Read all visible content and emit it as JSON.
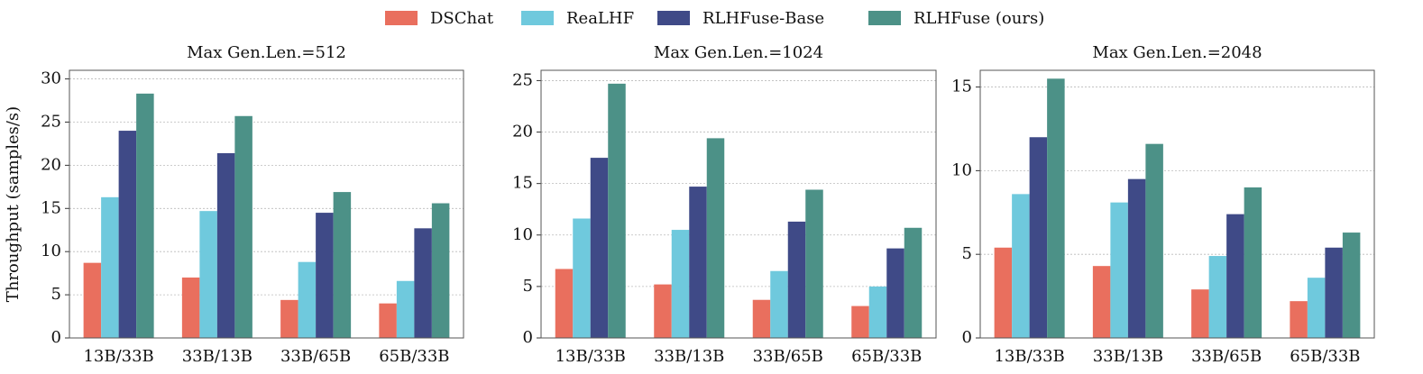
{
  "chart_data": [
    {
      "type": "bar",
      "title": "Max Gen.Len.=512",
      "ylabel": "Throughput (samples/s)",
      "categories": [
        "13B/33B",
        "33B/13B",
        "33B/65B",
        "65B/33B"
      ],
      "series": [
        {
          "name": "DSChat",
          "color": "#e96f5e",
          "values": [
            8.7,
            7.0,
            4.4,
            4.0
          ]
        },
        {
          "name": "ReaLHF",
          "color": "#6fc9dd",
          "values": [
            16.3,
            14.7,
            8.8,
            6.6
          ]
        },
        {
          "name": "RLHFuse-Base",
          "color": "#3f4a87",
          "values": [
            24.0,
            21.4,
            14.5,
            12.7
          ]
        },
        {
          "name": "RLHFuse (ours)",
          "color": "#4c9187",
          "values": [
            28.3,
            25.7,
            16.9,
            15.6
          ]
        }
      ],
      "ylim": [
        0,
        31
      ],
      "yticks": [
        0,
        5,
        10,
        15,
        20,
        25,
        30
      ],
      "grid": true
    },
    {
      "type": "bar",
      "title": "Max Gen.Len.=1024",
      "categories": [
        "13B/33B",
        "33B/13B",
        "33B/65B",
        "65B/33B"
      ],
      "series": [
        {
          "color": "#e96f5e",
          "values": [
            6.7,
            5.2,
            3.7,
            3.1
          ]
        },
        {
          "color": "#6fc9dd",
          "values": [
            11.6,
            10.5,
            6.5,
            5.0
          ]
        },
        {
          "color": "#3f4a87",
          "values": [
            17.5,
            14.7,
            11.3,
            8.7
          ]
        },
        {
          "color": "#4c9187",
          "values": [
            24.7,
            19.4,
            14.4,
            10.7
          ]
        }
      ],
      "ylim": [
        0,
        26
      ],
      "yticks": [
        0,
        5,
        10,
        15,
        20,
        25
      ],
      "grid": true
    },
    {
      "type": "bar",
      "title": "Max Gen.Len.=2048",
      "categories": [
        "13B/33B",
        "33B/13B",
        "33B/65B",
        "65B/33B"
      ],
      "series": [
        {
          "color": "#e96f5e",
          "values": [
            5.4,
            4.3,
            2.9,
            2.2
          ]
        },
        {
          "color": "#6fc9dd",
          "values": [
            8.6,
            8.1,
            4.9,
            3.6
          ]
        },
        {
          "color": "#3f4a87",
          "values": [
            12.0,
            9.5,
            7.4,
            5.4
          ]
        },
        {
          "color": "#4c9187",
          "values": [
            15.5,
            11.6,
            9.0,
            6.3
          ]
        }
      ],
      "ylim": [
        0,
        16
      ],
      "yticks": [
        0,
        5,
        10,
        15
      ],
      "grid": true
    }
  ]
}
